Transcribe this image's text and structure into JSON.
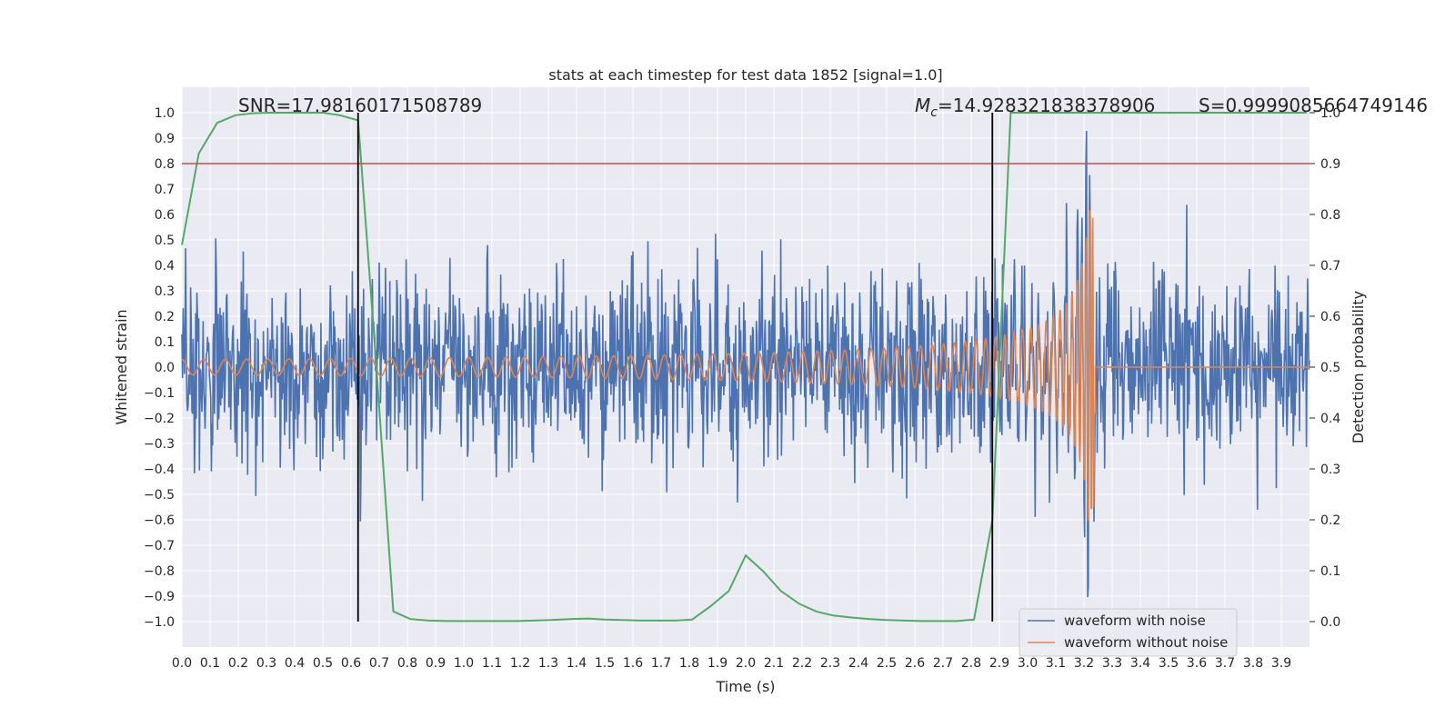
{
  "chart_data": {
    "type": "line",
    "title": "stats at each timestep for test data 1852 [signal=1.0]",
    "xlabel": "Time (s)",
    "ylabel_left": "Whitened strain",
    "ylabel_right": "Detection probability",
    "xlim": [
      0.0,
      4.0
    ],
    "ylim_left": [
      -1.1,
      1.1
    ],
    "ylim_right": [
      -0.05,
      1.05
    ],
    "x_ticks": [
      "0.0",
      "0.1",
      "0.2",
      "0.3",
      "0.4",
      "0.5",
      "0.6",
      "0.7",
      "0.8",
      "0.9",
      "1.0",
      "1.1",
      "1.2",
      "1.3",
      "1.4",
      "1.5",
      "1.6",
      "1.7",
      "1.8",
      "1.9",
      "2.0",
      "2.1",
      "2.2",
      "2.3",
      "2.4",
      "2.5",
      "2.6",
      "2.7",
      "2.8",
      "2.9",
      "3.0",
      "3.1",
      "3.2",
      "3.3",
      "3.4",
      "3.5",
      "3.6",
      "3.7",
      "3.8",
      "3.9"
    ],
    "y_ticks_left": [
      "1.0",
      "0.9",
      "0.8",
      "0.7",
      "0.6",
      "0.5",
      "0.4",
      "0.3",
      "0.2",
      "0.1",
      "0.0",
      "−0.1",
      "−0.2",
      "−0.3",
      "−0.4",
      "−0.5",
      "−0.6",
      "−0.7",
      "−0.8",
      "−0.9",
      "−1.0"
    ],
    "y_ticks_right": [
      "1.0",
      "0.9",
      "0.8",
      "0.7",
      "0.6",
      "0.5",
      "0.4",
      "0.3",
      "0.2",
      "0.1",
      "0.0"
    ],
    "grid": true,
    "legend_position": "lower-right",
    "annotations": {
      "snr": "SNR=17.98160171508789",
      "mc_symbol": "M",
      "mc_subscript": "c",
      "mc_value": "=14.928321838378906",
      "s_value": "S=0.9999085664749146"
    },
    "threshold_line": {
      "value": 0.9,
      "axis": "right",
      "color": "#c44e52"
    },
    "vertical_lines": [
      0.625,
      2.875
    ],
    "series": [
      {
        "name": "waveform with noise",
        "color": "#4c72b0",
        "kind": "noise",
        "amplitude_approx": 0.55,
        "peak_max": 1.0,
        "peak_min": -0.98
      },
      {
        "name": "waveform without noise",
        "color": "#dd8452",
        "kind": "chirp",
        "start_amplitude": 0.03,
        "end_amplitude": 0.62,
        "merger_time": 3.24
      },
      {
        "name": "detection probability",
        "color": "#55a868",
        "axis": "right",
        "x": [
          0.0,
          0.06,
          0.125,
          0.19,
          0.25,
          0.31,
          0.375,
          0.44,
          0.5,
          0.56,
          0.625,
          0.69,
          0.75,
          0.81,
          0.875,
          0.94,
          1.0,
          1.06,
          1.125,
          1.19,
          1.25,
          1.31,
          1.375,
          1.44,
          1.5,
          1.56,
          1.625,
          1.69,
          1.75,
          1.81,
          1.875,
          1.94,
          2.0,
          2.06,
          2.125,
          2.19,
          2.25,
          2.31,
          2.375,
          2.44,
          2.5,
          2.56,
          2.625,
          2.69,
          2.75,
          2.81,
          2.875,
          2.94,
          3.0,
          3.25,
          3.5,
          3.75,
          3.99
        ],
        "values": [
          0.74,
          0.92,
          0.98,
          0.995,
          0.999,
          1.0,
          1.0,
          1.0,
          1.0,
          0.995,
          0.985,
          0.5,
          0.02,
          0.005,
          0.002,
          0.001,
          0.001,
          0.001,
          0.001,
          0.001,
          0.002,
          0.003,
          0.005,
          0.006,
          0.004,
          0.003,
          0.002,
          0.002,
          0.002,
          0.004,
          0.03,
          0.06,
          0.13,
          0.1,
          0.06,
          0.035,
          0.02,
          0.012,
          0.008,
          0.005,
          0.003,
          0.002,
          0.001,
          0.001,
          0.001,
          0.004,
          0.2,
          1.0,
          1.0,
          1.0,
          1.0,
          1.0,
          1.0
        ]
      }
    ]
  }
}
